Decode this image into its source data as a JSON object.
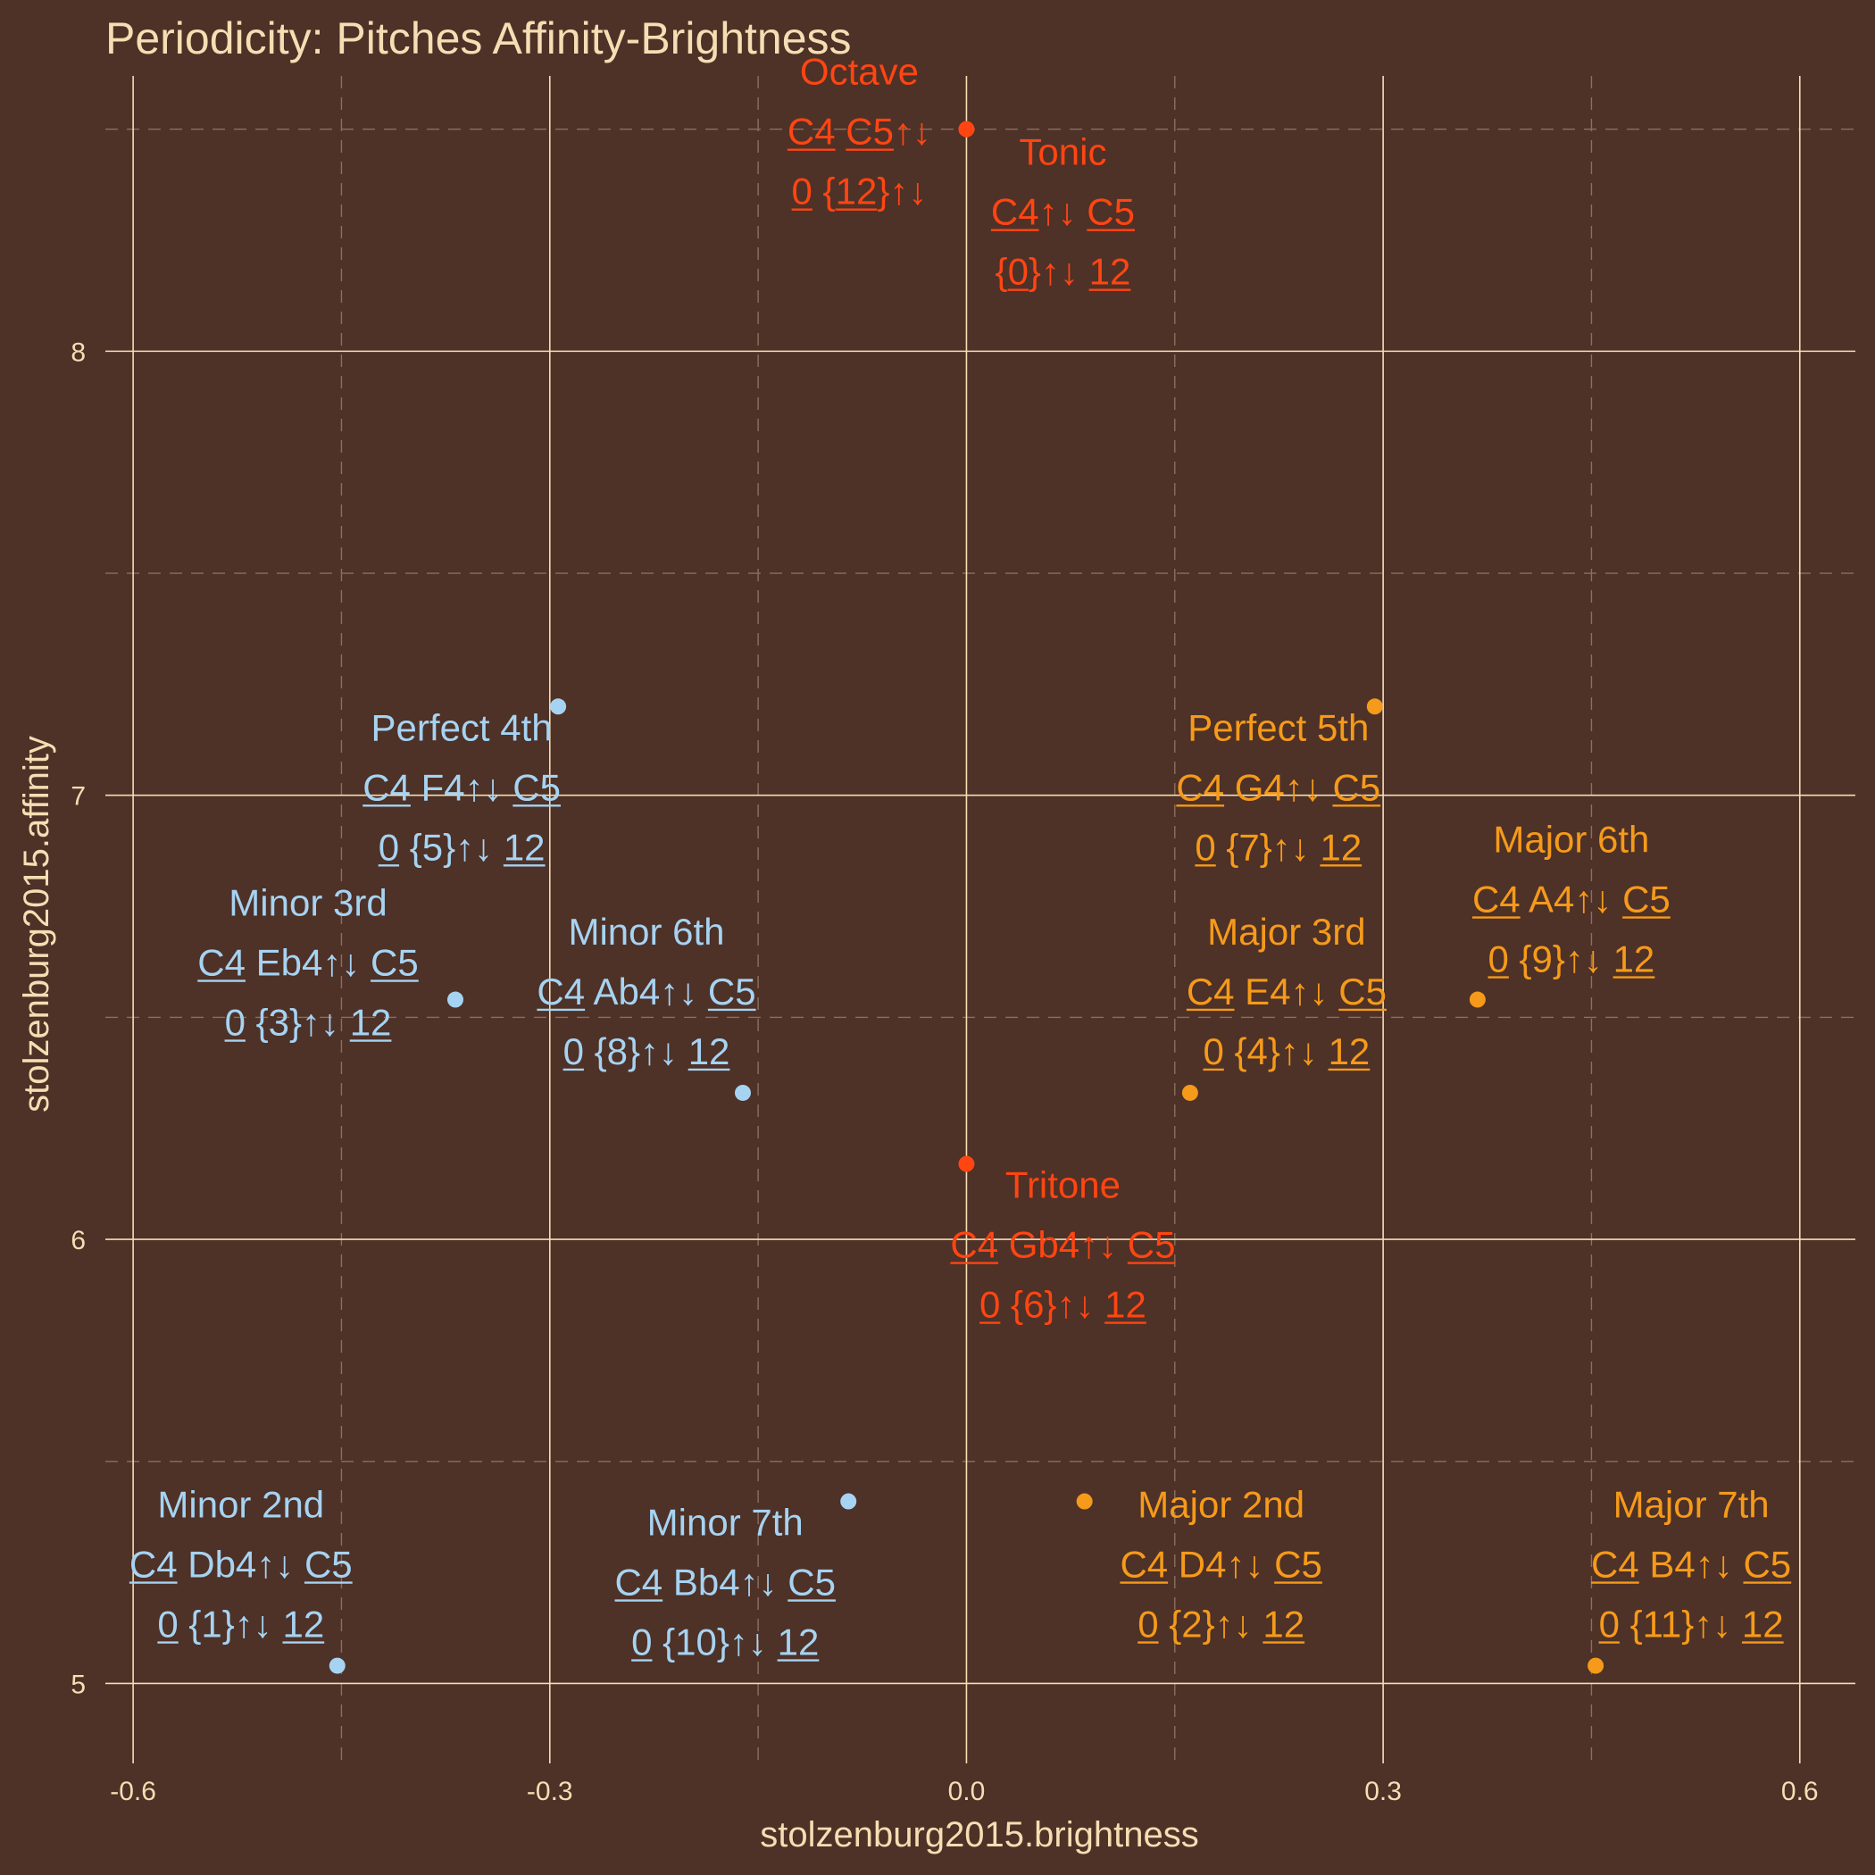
{
  "chart_data": {
    "type": "scatter",
    "title": "Periodicity: Pitches Affinity-Brightness",
    "xlabel": "stolzenburg2015.brightness",
    "ylabel": "stolzenburg2015.affinity",
    "xlim": [
      -0.62,
      0.64
    ],
    "ylim": [
      4.82,
      8.62
    ],
    "x_ticks": [
      -0.6,
      -0.3,
      0.0,
      0.3,
      0.6
    ],
    "x_tick_labels": [
      "-0.6",
      "-0.3",
      "0.0",
      "0.3",
      "0.6"
    ],
    "y_ticks": [
      5,
      6,
      7,
      8
    ],
    "y_tick_labels": [
      "5",
      "6",
      "7",
      "8"
    ],
    "x_minor": [
      -0.45,
      -0.15,
      0.15,
      0.45
    ],
    "y_minor": [
      5.5,
      6.5,
      7.5,
      8.5
    ],
    "grid": true,
    "legend": "none",
    "colors": {
      "minor": "#a6d3f2",
      "major": "#f59a1a",
      "neutral": "#ff4512"
    },
    "points": [
      {
        "name": "Octave",
        "x": 0.0,
        "y": 8.5,
        "group": "neutral",
        "note_line": [
          "C4",
          " ",
          "C5",
          "↑↓"
        ],
        "pc_line": [
          "0",
          " {",
          "12",
          "}↑↓"
        ]
      },
      {
        "name": "Tonic",
        "x": 0.0,
        "y": 8.5,
        "group": "neutral",
        "note_line": [
          "C4",
          "↑↓ ",
          "C5"
        ],
        "pc_line": [
          "{",
          "0",
          "}↑↓ ",
          "12"
        ]
      },
      {
        "name": "Perfect 4th",
        "x": -0.294,
        "y": 7.2,
        "group": "minor",
        "note_line": [
          "C4",
          " F4↑↓ ",
          "C5"
        ],
        "pc_line": [
          "0",
          " {5}↑↓ ",
          "12"
        ]
      },
      {
        "name": "Perfect 5th",
        "x": 0.294,
        "y": 7.2,
        "group": "major",
        "note_line": [
          "C4",
          " G4↑↓ ",
          "C5"
        ],
        "pc_line": [
          "0",
          " {7}↑↓ ",
          "12"
        ]
      },
      {
        "name": "Minor 3rd",
        "x": -0.368,
        "y": 6.54,
        "group": "minor",
        "note_line": [
          "C4",
          " Eb4↑↓ ",
          "C5"
        ],
        "pc_line": [
          "0",
          " {3}↑↓ ",
          "12"
        ]
      },
      {
        "name": "Major 6th",
        "x": 0.368,
        "y": 6.54,
        "group": "major",
        "note_line": [
          "C4",
          " A4↑↓ ",
          "C5"
        ],
        "pc_line": [
          "0",
          " {9}↑↓ ",
          "12"
        ]
      },
      {
        "name": "Minor 6th",
        "x": -0.161,
        "y": 6.33,
        "group": "minor",
        "note_line": [
          "C4",
          " Ab4↑↓ ",
          "C5"
        ],
        "pc_line": [
          "0",
          " {8}↑↓ ",
          "12"
        ]
      },
      {
        "name": "Major 3rd",
        "x": 0.161,
        "y": 6.33,
        "group": "major",
        "note_line": [
          "C4",
          " E4↑↓ ",
          "C5"
        ],
        "pc_line": [
          "0",
          " {4}↑↓ ",
          "12"
        ]
      },
      {
        "name": "Tritone",
        "x": 0.0,
        "y": 6.17,
        "group": "neutral",
        "note_line": [
          "C4",
          " Gb4↑↓ ",
          "C5"
        ],
        "pc_line": [
          "0",
          " {6}↑↓ ",
          "12"
        ]
      },
      {
        "name": "Minor 7th",
        "x": -0.085,
        "y": 5.41,
        "group": "minor",
        "note_line": [
          "C4",
          " Bb4↑↓ ",
          "C5"
        ],
        "pc_line": [
          "0",
          " {10}↑↓ ",
          "12"
        ]
      },
      {
        "name": "Major 2nd",
        "x": 0.085,
        "y": 5.41,
        "group": "major",
        "note_line": [
          "C4",
          " D4↑↓ ",
          "C5"
        ],
        "pc_line": [
          "0",
          " {2}↑↓ ",
          "12"
        ]
      },
      {
        "name": "Minor 2nd",
        "x": -0.453,
        "y": 5.04,
        "group": "minor",
        "note_line": [
          "C4",
          " Db4↑↓ ",
          "C5"
        ],
        "pc_line": [
          "0",
          " {1}↑↓ ",
          "12"
        ]
      },
      {
        "name": "Major 7th",
        "x": 0.453,
        "y": 5.04,
        "group": "major",
        "note_line": [
          "C4",
          " B4↑↓ ",
          "C5"
        ],
        "pc_line": [
          "0",
          " {11}↑↓ ",
          "12"
        ]
      }
    ]
  }
}
